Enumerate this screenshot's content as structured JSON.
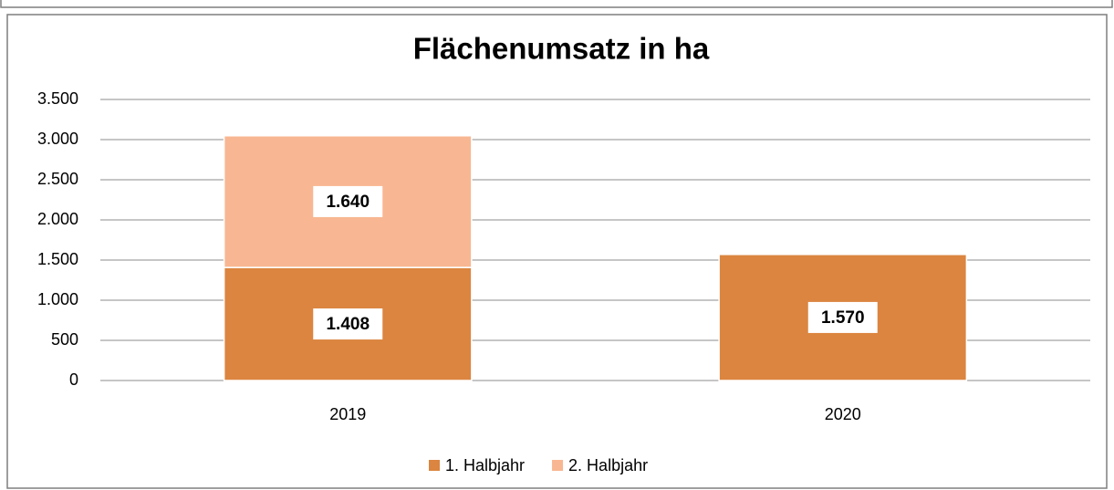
{
  "chart_data": {
    "type": "stacked_bar",
    "title": "Flächenumsatz in ha",
    "categories": [
      "2019",
      "2020"
    ],
    "series": [
      {
        "name": "1. Halbjahr",
        "color": "#db8540",
        "values": [
          1408,
          1570
        ],
        "value_labels": [
          "1.408",
          "1.570"
        ]
      },
      {
        "name": "2. Halbjahr",
        "color": "#f8b792",
        "values": [
          1640,
          null
        ],
        "value_labels": [
          "1.640",
          null
        ]
      }
    ],
    "ylim": [
      0,
      3500
    ],
    "yticks": [
      0,
      500,
      {
        "value": 1000,
        "label": "1.000"
      },
      {
        "value": 1500,
        "label": "1.500"
      },
      {
        "value": 2000,
        "label": "2.000"
      },
      {
        "value": 2500,
        "label": "2.500"
      },
      {
        "value": 3000,
        "label": "3.000"
      },
      {
        "value": 3500,
        "label": "3.500"
      }
    ],
    "grid": true,
    "legend": "bottom"
  }
}
